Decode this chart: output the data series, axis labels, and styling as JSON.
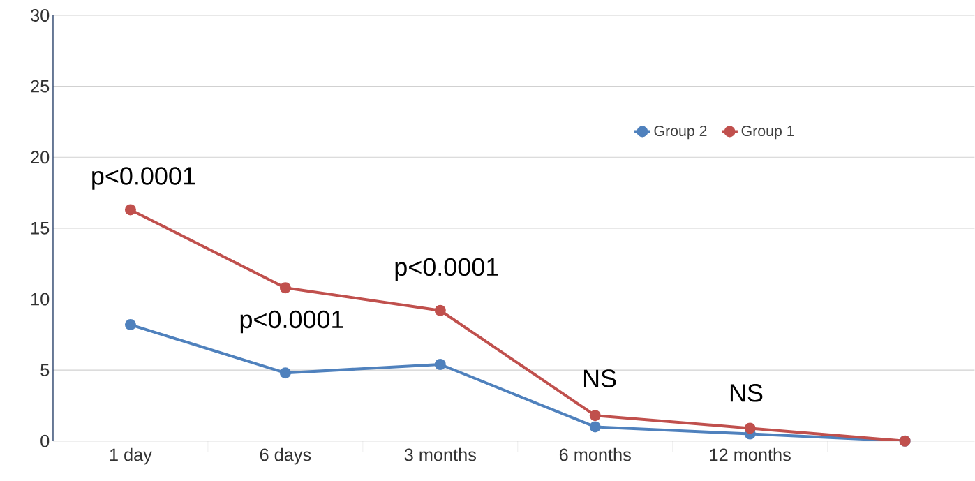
{
  "chart_data": {
    "type": "line",
    "categories": [
      "1 day",
      "6 days",
      "3 months",
      "6 months",
      "12 months",
      null
    ],
    "series": [
      {
        "name": "Group 2",
        "color": "#4f81bd",
        "values": [
          8.2,
          4.8,
          5.4,
          1.0,
          0.5,
          0
        ]
      },
      {
        "name": "Group 1",
        "color": "#c0504d",
        "values": [
          16.3,
          10.8,
          9.2,
          1.8,
          0.9,
          0
        ]
      }
    ],
    "ylim": [
      0,
      30
    ],
    "yticks": [
      0,
      5,
      10,
      15,
      20,
      25,
      30
    ],
    "grid": "y",
    "legend": "top right",
    "marker": "circle",
    "line_style": "solid",
    "annotations": [
      "p<0.0001",
      "p<0.0001",
      "p<0.0001",
      "NS",
      "NS"
    ]
  }
}
